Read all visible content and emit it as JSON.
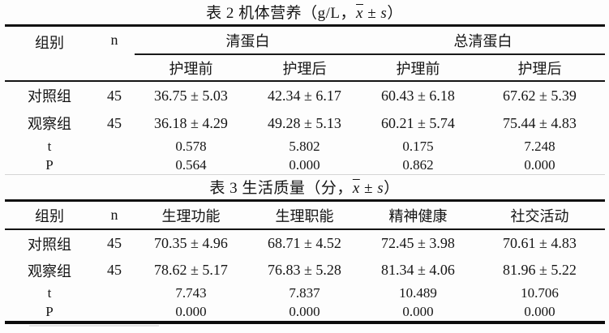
{
  "tables": [
    {
      "title_prefix": "表 2 机体营养（g/L，",
      "title_x": "x",
      "title_pm": " ± s",
      "title_suffix": "）",
      "headers": {
        "group": "组别",
        "n": "n",
        "span1": "清蛋白",
        "span2": "总清蛋白"
      },
      "sub_headers": [
        "护理前",
        "护理后",
        "护理前",
        "护理后"
      ],
      "rows": [
        {
          "label": "对照组",
          "n": "45",
          "values": [
            "36.75 ± 5.03",
            "42.34 ± 6.17",
            "60.43 ± 6.18",
            "67.62 ± 5.39"
          ]
        },
        {
          "label": "观察组",
          "n": "45",
          "values": [
            "36.18 ± 4.29",
            "49.28 ± 5.13",
            "60.21 ± 5.74",
            "75.44 ± 4.83"
          ]
        },
        {
          "label": "t",
          "n": "",
          "values": [
            "0.578",
            "5.802",
            "0.175",
            "7.248"
          ]
        },
        {
          "label": "P",
          "n": "",
          "values": [
            "0.564",
            "0.000",
            "0.862",
            "0.000"
          ]
        }
      ]
    },
    {
      "title_prefix": "表 3 生活质量（分，",
      "title_x": "x",
      "title_pm": " ± s",
      "title_suffix": "）",
      "headers": {
        "group": "组别",
        "n": "n",
        "col1": "生理功能",
        "col2": "生理职能",
        "col3": "精神健康",
        "col4": "社交活动"
      },
      "rows": [
        {
          "label": "对照组",
          "n": "45",
          "values": [
            "70.35 ± 4.96",
            "68.71 ± 4.52",
            "72.45 ± 3.98",
            "70.61 ± 4.83"
          ]
        },
        {
          "label": "观察组",
          "n": "45",
          "values": [
            "78.62 ± 5.17",
            "76.83 ± 5.28",
            "81.34 ± 4.06",
            "81.96 ± 5.22"
          ]
        },
        {
          "label": "t",
          "n": "",
          "values": [
            "7.743",
            "7.837",
            "10.489",
            "10.706"
          ]
        },
        {
          "label": "P",
          "n": "",
          "values": [
            "0.000",
            "0.000",
            "0.000",
            "0.000"
          ]
        }
      ]
    }
  ]
}
